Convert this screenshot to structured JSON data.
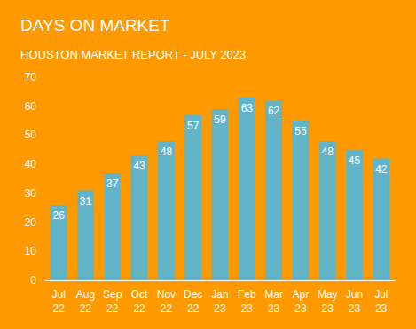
{
  "chart_data": {
    "type": "bar",
    "title": "DAYS ON MARKET",
    "subtitle": "HOUSTON MARKET REPORT - JULY 2023",
    "categories": [
      "Jul 22",
      "Aug 22",
      "Sep 22",
      "Oct 22",
      "Nov 22",
      "Dec 22",
      "Jan 23",
      "Feb 23",
      "Mar 23",
      "Apr 23",
      "May 23",
      "Jun 23",
      "Jul 23"
    ],
    "values": [
      26,
      31,
      37,
      43,
      48,
      57,
      59,
      63,
      62,
      55,
      48,
      45,
      42
    ],
    "color": "#62b4c8",
    "ylim": [
      0,
      70
    ],
    "yticks": [
      0,
      10,
      20,
      30,
      40,
      50,
      60,
      70
    ],
    "grid": false,
    "data_labels": true
  }
}
